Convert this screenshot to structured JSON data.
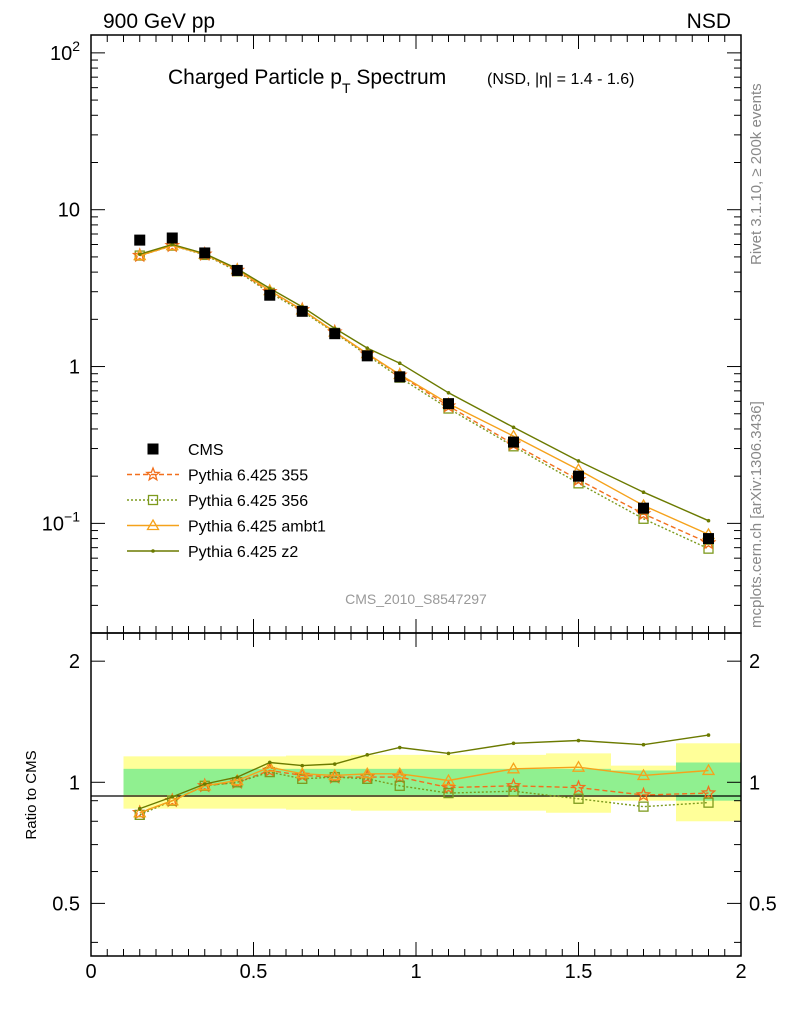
{
  "header": {
    "left_label": "900 GeV pp",
    "right_label": "NSD"
  },
  "side_labels": {
    "rivet": "Rivet 3.1.10, ≥ 200k events",
    "mcplots": "mcplots.cern.ch [arXiv:1306.3436]"
  },
  "colors": {
    "cms": "#000000",
    "p355": "#f26f1c",
    "p356": "#7d9a1e",
    "ambt1": "#f5a21b",
    "z2": "#6b7a00",
    "band_inner": "#90f090",
    "band_outer": "#ffff99"
  },
  "chart_data": [
    {
      "type": "scatter",
      "title": "Charged Particle p",
      "title_sub": "T",
      "title_rest": " Spectrum",
      "title_extra": "(NSD, |η| = 1.4 - 1.6)",
      "watermark": "CMS_2010_S8547297",
      "x_scale": "linear",
      "y_scale": "log",
      "xlim": [
        0,
        2
      ],
      "ylim": [
        0.02,
        130
      ],
      "y_tick_labels": [
        {
          "value": 100,
          "base": "10",
          "exp": "2"
        },
        {
          "value": 10,
          "base": "10",
          "exp": ""
        },
        {
          "value": 1,
          "base": "1",
          "exp": ""
        },
        {
          "value": 0.1,
          "base": "10",
          "exp": "−1"
        }
      ],
      "legend_position": "lower-left",
      "legend": [
        {
          "key": "cms",
          "label": "CMS"
        },
        {
          "key": "p355",
          "label": "Pythia 6.425 355"
        },
        {
          "key": "p356",
          "label": "Pythia 6.425 356"
        },
        {
          "key": "ambt1",
          "label": "Pythia 6.425 ambt1"
        },
        {
          "key": "z2",
          "label": "Pythia 6.425 z2"
        }
      ],
      "data": {
        "x": [
          0.15,
          0.25,
          0.35,
          0.45,
          0.55,
          0.65,
          0.75,
          0.85,
          0.95,
          1.1,
          1.3,
          1.5,
          1.7,
          1.9
        ],
        "cms": [
          6.4,
          6.6,
          5.3,
          4.1,
          2.85,
          2.25,
          1.62,
          1.17,
          0.86,
          0.58,
          0.33,
          0.2,
          0.125,
          0.08
        ],
        "p355": [
          5.1,
          5.9,
          5.2,
          4.1,
          3.0,
          2.3,
          1.66,
          1.2,
          0.88,
          0.56,
          0.32,
          0.19,
          0.115,
          0.075
        ],
        "p356": [
          5.1,
          5.9,
          5.15,
          4.05,
          2.95,
          2.25,
          1.64,
          1.18,
          0.85,
          0.54,
          0.31,
          0.18,
          0.107,
          0.069
        ],
        "ambt1": [
          5.1,
          5.9,
          5.2,
          4.15,
          3.05,
          2.3,
          1.66,
          1.21,
          0.89,
          0.58,
          0.36,
          0.22,
          0.13,
          0.085
        ],
        "z2": [
          5.2,
          6.0,
          5.25,
          4.2,
          3.15,
          2.4,
          1.75,
          1.31,
          1.05,
          0.68,
          0.41,
          0.25,
          0.158,
          0.104
        ]
      }
    },
    {
      "type": "line",
      "ylabel": "Ratio to CMS",
      "x_scale": "linear",
      "y_scale": "log",
      "xlim": [
        0,
        2
      ],
      "ylim": [
        0.37,
        2.35
      ],
      "x_tick_labels": [
        {
          "value": 0,
          "label": "0"
        },
        {
          "value": 0.5,
          "label": "0.5"
        },
        {
          "value": 1,
          "label": "1"
        },
        {
          "value": 1.5,
          "label": "1.5"
        },
        {
          "value": 2,
          "label": "2"
        }
      ],
      "y_tick_labels": [
        {
          "value": 0.5,
          "label": "0.5"
        },
        {
          "value": 1,
          "label": "1"
        },
        {
          "value": 2,
          "label": "2"
        }
      ],
      "bands": [
        {
          "x0": 0.1,
          "x1": 0.2,
          "inner": [
            0.93,
            1.08
          ],
          "outer": [
            0.86,
            1.16
          ]
        },
        {
          "x0": 0.2,
          "x1": 0.3,
          "inner": [
            0.93,
            1.08
          ],
          "outer": [
            0.86,
            1.16
          ]
        },
        {
          "x0": 0.3,
          "x1": 0.4,
          "inner": [
            0.93,
            1.08
          ],
          "outer": [
            0.86,
            1.16
          ]
        },
        {
          "x0": 0.4,
          "x1": 0.5,
          "inner": [
            0.93,
            1.08
          ],
          "outer": [
            0.86,
            1.16
          ]
        },
        {
          "x0": 0.5,
          "x1": 0.6,
          "inner": [
            0.93,
            1.08
          ],
          "outer": [
            0.86,
            1.16
          ]
        },
        {
          "x0": 0.6,
          "x1": 0.7,
          "inner": [
            0.93,
            1.08
          ],
          "outer": [
            0.855,
            1.165
          ]
        },
        {
          "x0": 0.7,
          "x1": 0.8,
          "inner": [
            0.93,
            1.08
          ],
          "outer": [
            0.855,
            1.165
          ]
        },
        {
          "x0": 0.8,
          "x1": 0.9,
          "inner": [
            0.93,
            1.08
          ],
          "outer": [
            0.85,
            1.17
          ]
        },
        {
          "x0": 0.9,
          "x1": 1.0,
          "inner": [
            0.93,
            1.08
          ],
          "outer": [
            0.85,
            1.17
          ]
        },
        {
          "x0": 1.0,
          "x1": 1.2,
          "inner": [
            0.93,
            1.08
          ],
          "outer": [
            0.85,
            1.17
          ]
        },
        {
          "x0": 1.2,
          "x1": 1.4,
          "inner": [
            0.93,
            1.08
          ],
          "outer": [
            0.85,
            1.17
          ]
        },
        {
          "x0": 1.4,
          "x1": 1.6,
          "inner": [
            0.93,
            1.08
          ],
          "outer": [
            0.84,
            1.18
          ]
        },
        {
          "x0": 1.6,
          "x1": 1.8,
          "inner": [
            0.93,
            1.07
          ],
          "outer": [
            0.9,
            1.1
          ]
        },
        {
          "x0": 1.8,
          "x1": 2.0,
          "inner": [
            0.9,
            1.12
          ],
          "outer": [
            0.8,
            1.25
          ]
        }
      ],
      "series": [
        {
          "key": "p355",
          "values": [
            0.84,
            0.9,
            0.98,
            1.0,
            1.07,
            1.04,
            1.03,
            1.03,
            1.03,
            0.97,
            0.98,
            0.97,
            0.93,
            0.94
          ]
        },
        {
          "key": "p356",
          "values": [
            0.83,
            0.9,
            0.98,
            1.0,
            1.06,
            1.02,
            1.03,
            1.02,
            0.98,
            0.94,
            0.95,
            0.91,
            0.87,
            0.89
          ]
        },
        {
          "key": "ambt1",
          "values": [
            0.84,
            0.9,
            0.98,
            1.01,
            1.09,
            1.05,
            1.04,
            1.05,
            1.05,
            1.01,
            1.08,
            1.09,
            1.04,
            1.07
          ]
        },
        {
          "key": "z2",
          "values": [
            0.86,
            0.92,
            0.99,
            1.03,
            1.12,
            1.1,
            1.11,
            1.17,
            1.22,
            1.18,
            1.25,
            1.27,
            1.24,
            1.31
          ]
        }
      ]
    }
  ]
}
